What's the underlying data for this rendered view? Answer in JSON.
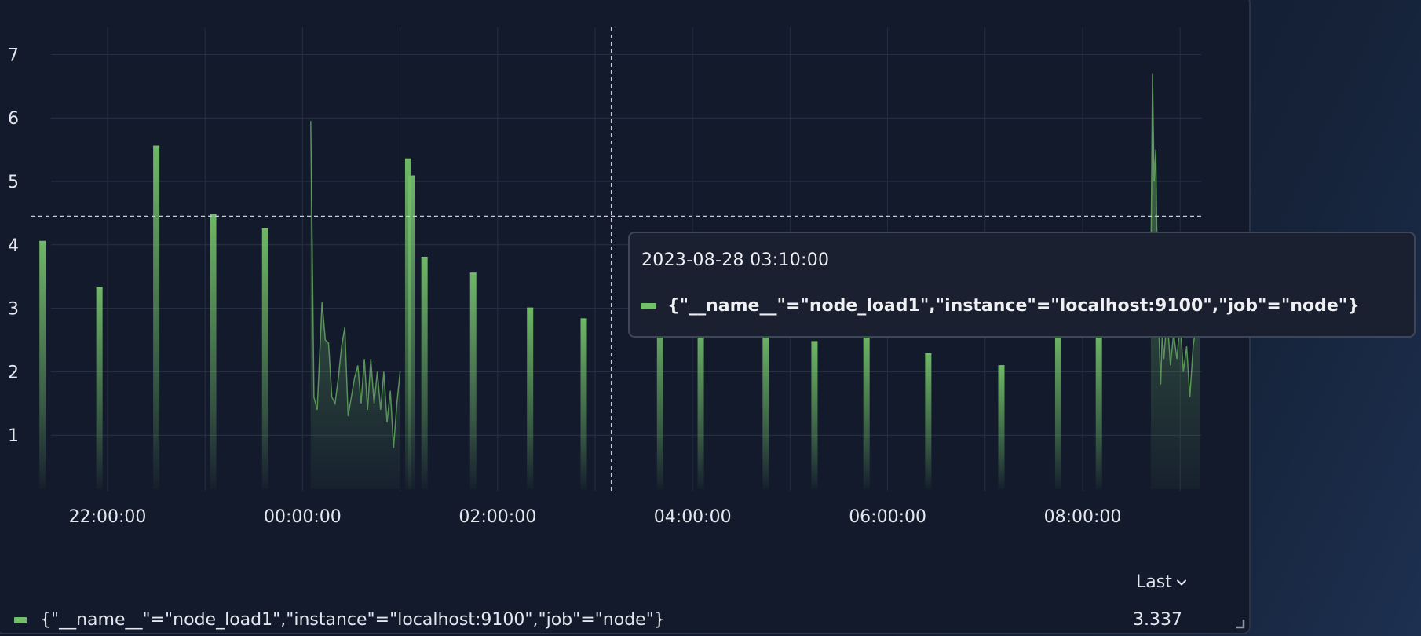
{
  "chart_data": {
    "type": "area",
    "title": "",
    "xlabel": "",
    "ylabel": "",
    "ylim": [
      0,
      7.4
    ],
    "yticks": [
      "1",
      "2",
      "3",
      "4",
      "5",
      "6",
      "7"
    ],
    "xticks": [
      "22:00:00",
      "00:00:00",
      "02:00:00",
      "04:00:00",
      "06:00:00",
      "08:00:00"
    ],
    "grid": true,
    "crosshair": {
      "time": "03:10:00",
      "value": 4.45
    },
    "series": [
      {
        "name": "{\"__name__\"=\"node_load1\",\"instance\"=\"localhost:9100\",\"job\"=\"node\"}",
        "color": "#73bf69",
        "spikes": [
          {
            "t": "21:20",
            "v": 4.05
          },
          {
            "t": "21:55",
            "v": 3.32
          },
          {
            "t": "22:30",
            "v": 5.55
          },
          {
            "t": "23:05",
            "v": 4.47
          },
          {
            "t": "23:37",
            "v": 4.25
          },
          {
            "t": "01:05",
            "v": 5.35
          },
          {
            "t": "01:07",
            "v": 5.08
          },
          {
            "t": "01:15",
            "v": 3.8
          },
          {
            "t": "01:45",
            "v": 3.55
          },
          {
            "t": "02:20",
            "v": 3.0
          },
          {
            "t": "02:53",
            "v": 2.83
          },
          {
            "t": "03:40",
            "v": 2.9
          },
          {
            "t": "04:05",
            "v": 2.7
          },
          {
            "t": "04:45",
            "v": 2.65
          },
          {
            "t": "05:15",
            "v": 2.47
          },
          {
            "t": "05:47",
            "v": 2.6
          },
          {
            "t": "06:25",
            "v": 2.28
          },
          {
            "t": "07:10",
            "v": 2.09
          },
          {
            "t": "07:45",
            "v": 2.65
          },
          {
            "t": "08:10",
            "v": 2.6
          }
        ],
        "bursts": [
          {
            "points": [
              [
                "00:05",
                5.95
              ],
              [
                "00:07",
                1.6
              ],
              [
                "00:09",
                1.4
              ],
              [
                "00:12",
                3.1
              ],
              [
                "00:14",
                2.5
              ],
              [
                "00:16",
                2.45
              ],
              [
                "00:18",
                1.6
              ],
              [
                "00:20",
                1.5
              ],
              [
                "00:22",
                1.9
              ],
              [
                "00:24",
                2.4
              ],
              [
                "00:26",
                2.7
              ],
              [
                "00:28",
                1.3
              ],
              [
                "00:30",
                1.6
              ],
              [
                "00:32",
                1.9
              ],
              [
                "00:34",
                2.1
              ],
              [
                "00:36",
                1.5
              ],
              [
                "00:38",
                2.2
              ],
              [
                "00:40",
                1.4
              ],
              [
                "00:42",
                2.2
              ],
              [
                "00:44",
                1.5
              ],
              [
                "00:46",
                2.0
              ],
              [
                "00:48",
                1.4
              ],
              [
                "00:50",
                2.0
              ],
              [
                "00:52",
                1.2
              ],
              [
                "00:54",
                1.7
              ],
              [
                "00:56",
                0.8
              ],
              [
                "00:58",
                1.5
              ],
              [
                "01:00",
                2.0
              ]
            ]
          },
          {
            "points": [
              [
                "08:42",
                3.5
              ],
              [
                "08:43",
                6.7
              ],
              [
                "08:44",
                5.0
              ],
              [
                "08:45",
                5.5
              ],
              [
                "08:46",
                3.5
              ],
              [
                "08:47",
                2.6
              ],
              [
                "08:48",
                1.8
              ],
              [
                "08:49",
                2.6
              ],
              [
                "08:50",
                2.2
              ],
              [
                "08:52",
                2.9
              ],
              [
                "08:54",
                2.1
              ],
              [
                "08:56",
                2.6
              ],
              [
                "08:58",
                2.2
              ],
              [
                "09:00",
                2.8
              ],
              [
                "09:02",
                2.0
              ],
              [
                "09:04",
                2.4
              ],
              [
                "09:06",
                1.6
              ],
              [
                "09:08",
                2.4
              ],
              [
                "09:10",
                2.8
              ],
              [
                "09:12",
                3.1
              ]
            ]
          }
        ]
      }
    ]
  },
  "tooltip": {
    "time": "2023-08-28 03:10:00",
    "series_label": "{\"__name__\"=\"node_load1\",\"instance\"=\"localhost:9100\",\"job\"=\"node\"}"
  },
  "legend": {
    "column_header": "Last",
    "rows": [
      {
        "label": "{\"__name__\"=\"node_load1\",\"instance\"=\"localhost:9100\",\"job\"=\"node\"}",
        "value": "3.337"
      }
    ]
  },
  "icons": {
    "sort": "chevron-down-icon",
    "resize": "resize-handle-icon"
  }
}
